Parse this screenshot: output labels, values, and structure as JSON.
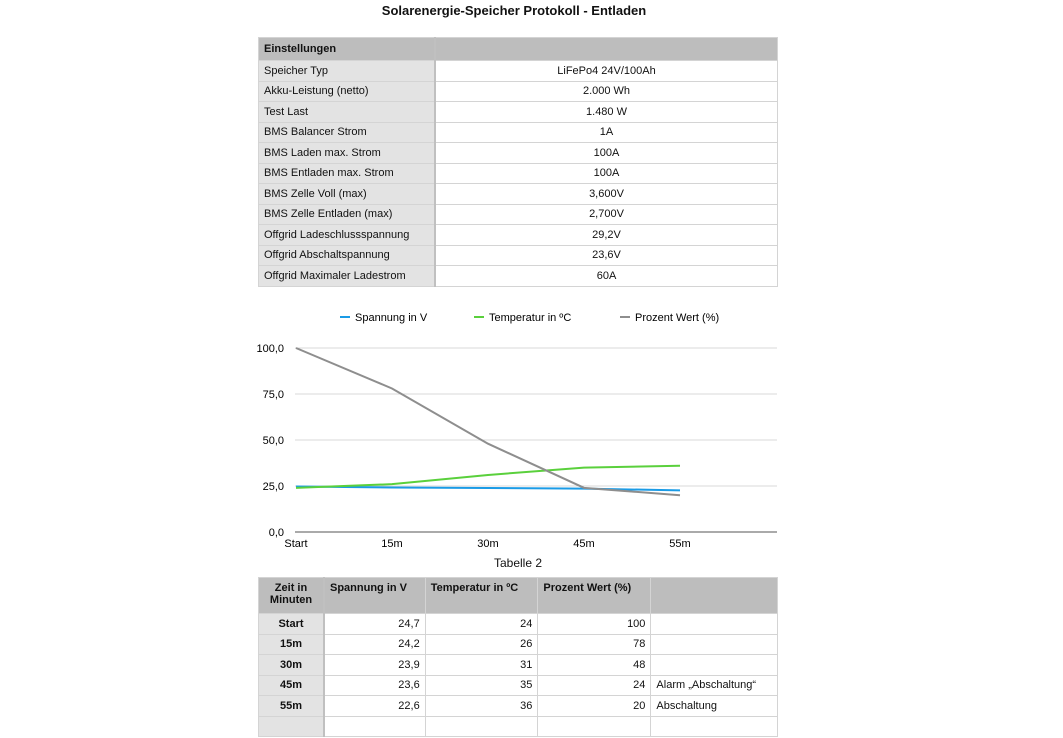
{
  "title": "Solarenergie-Speicher Protokoll - Entladen",
  "settings": {
    "header": "Einstellungen",
    "rows": [
      {
        "k": "Speicher Typ",
        "v": "LiFePo4  24V/100Ah"
      },
      {
        "k": "Akku-Leistung  (netto)",
        "v": "2.000 Wh"
      },
      {
        "k": "Test Last",
        "v": "1.480 W"
      },
      {
        "k": "BMS Balancer Strom",
        "v": "1A"
      },
      {
        "k": "BMS Laden max. Strom",
        "v": "100A"
      },
      {
        "k": "BMS Entladen max. Strom",
        "v": "100A"
      },
      {
        "k": "BMS Zelle Voll (max)",
        "v": "3,600V"
      },
      {
        "k": "BMS Zelle Entladen (max)",
        "v": "2,700V"
      },
      {
        "k": "Offgrid Ladeschlussspannung",
        "v": "29,2V"
      },
      {
        "k": "Offgrid Abschaltspannung",
        "v": "23,6V"
      },
      {
        "k": "Offgrid Maximaler Ladestrom",
        "v": "60A"
      }
    ]
  },
  "chart_data": {
    "type": "line",
    "title": "Tabelle 2",
    "categories": [
      "Start",
      "15m",
      "30m",
      "45m",
      "55m"
    ],
    "ylim": [
      0,
      100
    ],
    "yticks": [
      "0,0",
      "25,0",
      "50,0",
      "75,0",
      "100,0"
    ],
    "grid": true,
    "legend": "top",
    "series": [
      {
        "name": "Spannung in V",
        "color": "#1a9be6",
        "values": [
          24.7,
          24.2,
          23.9,
          23.6,
          22.6
        ]
      },
      {
        "name": "Temperatur in ºC",
        "color": "#5ad03c",
        "values": [
          24,
          26,
          31,
          35,
          36
        ]
      },
      {
        "name": "Prozent Wert (%)",
        "color": "#8e8e8e",
        "values": [
          100,
          78,
          48,
          24,
          20
        ]
      }
    ]
  },
  "table": {
    "headers": [
      "Zeit in Minuten",
      "Spannung in V",
      "Temperatur in ºC",
      "Prozent Wert (%)",
      ""
    ],
    "rows": [
      [
        "Start",
        "24,7",
        "24",
        "100",
        ""
      ],
      [
        "15m",
        "24,2",
        "26",
        "78",
        ""
      ],
      [
        "30m",
        "23,9",
        "31",
        "48",
        ""
      ],
      [
        "45m",
        "23,6",
        "35",
        "24",
        "Alarm „Abschaltung“"
      ],
      [
        "55m",
        "22,6",
        "36",
        "20",
        "Abschaltung"
      ],
      [
        "",
        "",
        "",
        "",
        ""
      ]
    ]
  }
}
